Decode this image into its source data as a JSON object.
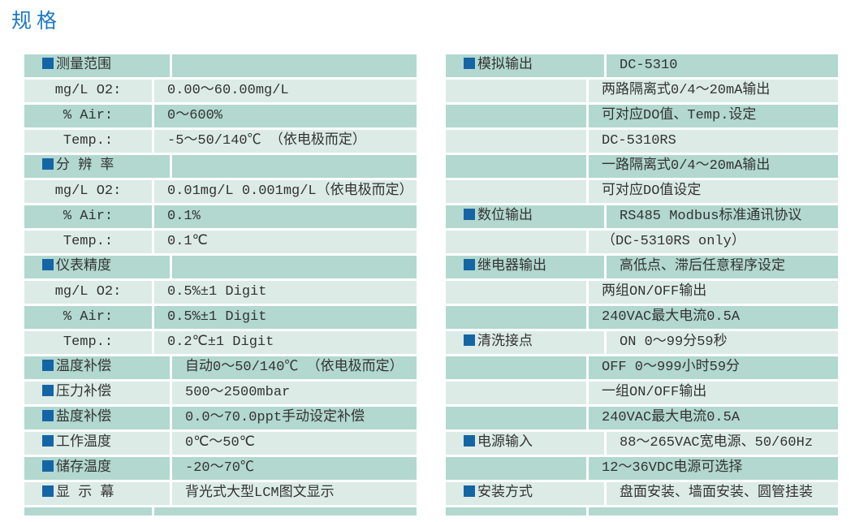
{
  "page": {
    "title": "规格"
  },
  "colors": {
    "row_teal": "#b2d8cf",
    "row_light": "#dcebe6",
    "marker_blue": "#1565a5",
    "title_blue": "#1d7ac4",
    "text": "#333333"
  },
  "tables": [
    {
      "id": "spec-table-left",
      "rows": [
        {
          "header": true,
          "label": "测量范围",
          "value": ""
        },
        {
          "header": false,
          "label": "mg/L O2:",
          "value": "0.00～60.00mg/L"
        },
        {
          "header": false,
          "label": "% Air:",
          "value": "0～600%"
        },
        {
          "header": false,
          "label": "Temp.:",
          "value": "-5～50/140℃ （依电极而定）"
        },
        {
          "header": true,
          "label": "分 辨 率",
          "value": ""
        },
        {
          "header": false,
          "label": "mg/L O2:",
          "value": "0.01mg/L 0.001mg/L（依电极而定）"
        },
        {
          "header": false,
          "label": "% Air:",
          "value": "0.1%"
        },
        {
          "header": false,
          "label": "Temp.:",
          "value": "0.1℃"
        },
        {
          "header": true,
          "label": "仪表精度",
          "value": ""
        },
        {
          "header": false,
          "label": "mg/L O2:",
          "value": "0.5%±1 Digit"
        },
        {
          "header": false,
          "label": "% Air:",
          "value": "0.5%±1 Digit"
        },
        {
          "header": false,
          "label": "Temp.:",
          "value": "0.2℃±1 Digit"
        },
        {
          "header": true,
          "label": "温度补偿",
          "value": "自动0～50/140℃ （依电极而定）"
        },
        {
          "header": true,
          "label": "压力补偿",
          "value": "500～2500mbar"
        },
        {
          "header": true,
          "label": "盐度补偿",
          "value": "0.0～70.0ppt手动设定补偿"
        },
        {
          "header": true,
          "label": "工作温度",
          "value": "0℃～50℃"
        },
        {
          "header": true,
          "label": "储存温度",
          "value": "-20～70℃"
        },
        {
          "header": true,
          "label": "显 示 幕",
          "value": "背光式大型LCM图文显示"
        },
        {
          "header": false,
          "label": "",
          "value": ""
        }
      ]
    },
    {
      "id": "spec-table-right",
      "rows": [
        {
          "header": true,
          "label": "模拟输出",
          "value": "DC-5310"
        },
        {
          "header": false,
          "label": "",
          "value": "两路隔离式0/4～20mA输出"
        },
        {
          "header": false,
          "label": "",
          "value": "可对应DO值、Temp.设定"
        },
        {
          "header": false,
          "label": "",
          "value": "DC-5310RS"
        },
        {
          "header": false,
          "label": "",
          "value": "一路隔离式0/4～20mA输出"
        },
        {
          "header": false,
          "label": "",
          "value": "可对应DO值设定"
        },
        {
          "header": true,
          "label": "数位输出",
          "value": "RS485  Modbus标准通讯协议"
        },
        {
          "header": false,
          "label": "",
          "value": "（DC-5310RS  only）"
        },
        {
          "header": true,
          "label": "继电器输出",
          "value": "高低点、滞后任意程序设定"
        },
        {
          "header": false,
          "label": "",
          "value": "两组ON/OFF输出"
        },
        {
          "header": false,
          "label": "",
          "value": "240VAC最大电流0.5A"
        },
        {
          "header": true,
          "label": "清洗接点",
          "value": "ON  0～99分59秒"
        },
        {
          "header": false,
          "label": "",
          "value": "OFF 0～999小时59分"
        },
        {
          "header": false,
          "label": "",
          "value": "一组ON/OFF输出"
        },
        {
          "header": false,
          "label": "",
          "value": "240VAC最大电流0.5A"
        },
        {
          "header": true,
          "label": "电源输入",
          "value": "88～265VAC宽电源、50/60Hz"
        },
        {
          "header": false,
          "label": "",
          "value": "12～36VDC电源可选择"
        },
        {
          "header": true,
          "label": "安装方式",
          "value": "盘面安装、墙面安装、圆管挂装"
        },
        {
          "header": false,
          "label": "",
          "value": ""
        }
      ]
    }
  ]
}
